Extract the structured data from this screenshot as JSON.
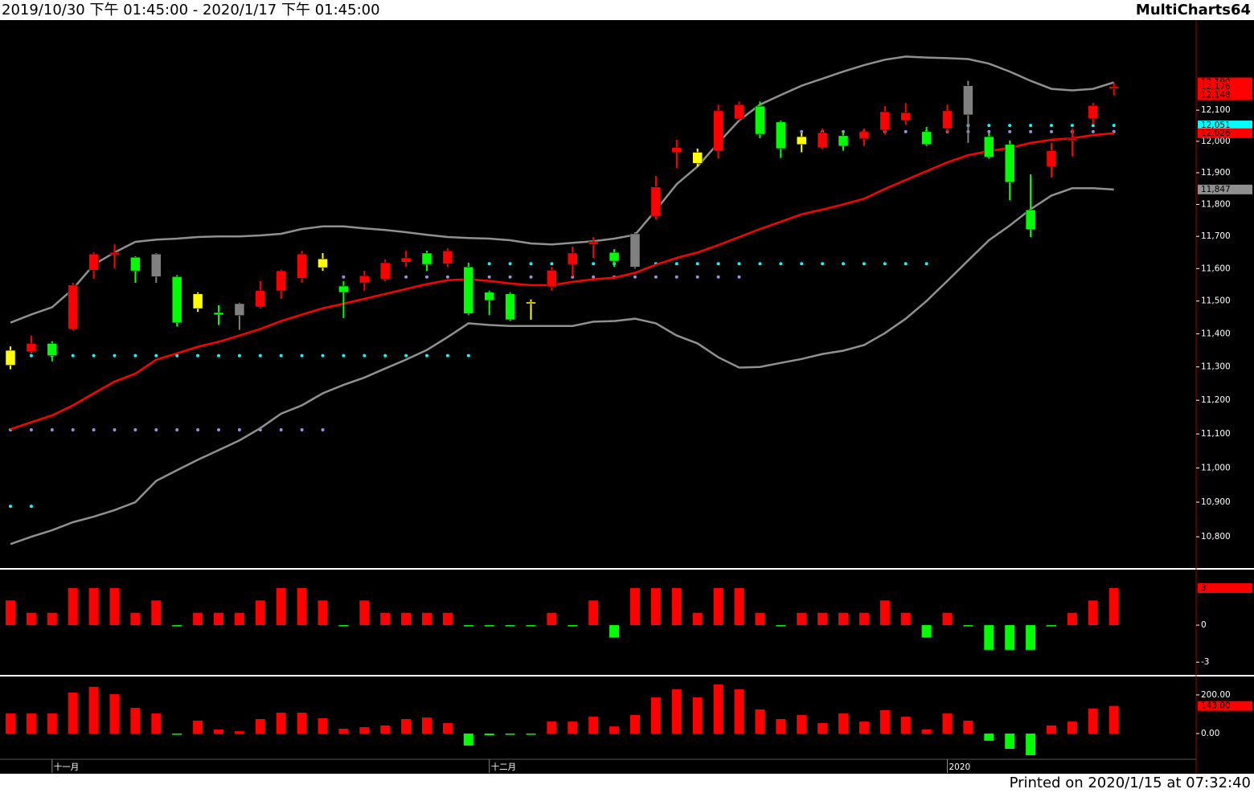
{
  "header": {
    "range": "2019/10/30 下午 01:45:00 - 2020/1/17 下午 01:45:00",
    "app": "MultiCharts64"
  },
  "footer": "Printed on 2020/1/15 at 07:32:40",
  "chart_data": [
    {
      "type": "candlestick",
      "log_scale": true,
      "categories": [
        null,
        null,
        "十一月",
        null,
        null,
        null,
        null,
        null,
        null,
        null,
        null,
        null,
        null,
        null,
        null,
        null,
        null,
        null,
        null,
        null,
        null,
        null,
        null,
        "十二月",
        null,
        null,
        null,
        null,
        null,
        null,
        null,
        null,
        null,
        null,
        null,
        null,
        null,
        null,
        null,
        null,
        null,
        null,
        null,
        null,
        null,
        "2020",
        null,
        null,
        null,
        null,
        null,
        null,
        null,
        null
      ],
      "open": [
        11305,
        11346,
        11371,
        11415,
        11595,
        11643,
        11635,
        11575,
        11575,
        11477,
        11465,
        11456,
        11482,
        11532,
        11570,
        11603,
        11546,
        11556,
        11568,
        11620,
        11648,
        11615,
        11605,
        11527,
        11522,
        11492,
        11544,
        11613,
        11675,
        11650,
        11605,
        11763,
        11965,
        11930,
        11970,
        12072,
        12113,
        12062,
        11990,
        11980,
        12018,
        12008,
        12036,
        12067,
        12031,
        12041,
        12085,
        12015,
        11990,
        11783,
        11920,
        12003,
        12074,
        12170
      ],
      "high": [
        11362,
        11395,
        11378,
        11556,
        11650,
        11675,
        11638,
        11648,
        11580,
        11527,
        11487,
        11495,
        11561,
        11597,
        11655,
        11648,
        11561,
        11593,
        11628,
        11655,
        11655,
        11663,
        11618,
        11532,
        11527,
        11505,
        11605,
        11668,
        11698,
        11660,
        11713,
        11890,
        12005,
        11977,
        12118,
        12128,
        12128,
        12067,
        12026,
        12041,
        12031,
        12041,
        12113,
        12123,
        12046,
        12118,
        12195,
        12028,
        12003,
        11895,
        11995,
        12041,
        12123,
        12190
      ],
      "low": [
        11293,
        11341,
        11317,
        11410,
        11568,
        11600,
        11556,
        11556,
        11422,
        11467,
        11427,
        11412,
        11477,
        11507,
        11556,
        11593,
        11448,
        11532,
        11561,
        11605,
        11593,
        11605,
        11457,
        11457,
        11439,
        11443,
        11532,
        11575,
        11633,
        11605,
        11600,
        11752,
        11915,
        11920,
        11945,
        12067,
        12010,
        11947,
        11965,
        11975,
        11970,
        11985,
        12023,
        12054,
        11985,
        12028,
        11995,
        11945,
        11813,
        11698,
        11885,
        11952,
        12054,
        12148
      ],
      "close": [
        11350,
        11371,
        11334,
        11549,
        11645,
        11650,
        11593,
        11645,
        11434,
        11522,
        11458,
        11492,
        11532,
        11593,
        11645,
        11630,
        11527,
        11578,
        11618,
        11633,
        11613,
        11655,
        11462,
        11502,
        11443,
        11497,
        11595,
        11648,
        11683,
        11623,
        11708,
        11855,
        11980,
        11965,
        12098,
        12118,
        12023,
        11977,
        12015,
        12028,
        11985,
        12031,
        12095,
        12092,
        11990,
        12098,
        12179,
        11950,
        11870,
        11721,
        11970,
        12010,
        12115,
        12176
      ],
      "colors": [
        "#ffff00",
        "#ff0000",
        "#00ff00",
        "#ff0000",
        "#ff0000",
        "#ff0000",
        "#00ff00",
        "#808080",
        "#00ff00",
        "#ffff00",
        "#00ff00",
        "#808080",
        "#ff0000",
        "#ff0000",
        "#ff0000",
        "#ffff00",
        "#00ff00",
        "#ff0000",
        "#ff0000",
        "#ff0000",
        "#00ff00",
        "#ff0000",
        "#00ff00",
        "#00ff00",
        "#00ff00",
        "#ffff00",
        "#ff0000",
        "#ff0000",
        "#ff0000",
        "#00ff00",
        "#808080",
        "#ff0000",
        "#ff0000",
        "#ffff00",
        "#ff0000",
        "#ff0000",
        "#00ff00",
        "#00ff00",
        "#ffff00",
        "#ff0000",
        "#00ff00",
        "#ff0000",
        "#ff0000",
        "#ff0000",
        "#00ff00",
        "#ff0000",
        "#808080",
        "#00ff00",
        "#00ff00",
        "#00ff00",
        "#ff0000",
        "#ff0000",
        "#ff0000",
        "#ff0000"
      ],
      "lines": [
        {
          "color": "#909090",
          "values": [
            11434,
            11459,
            11481,
            11537,
            11612,
            11650,
            11683,
            11690,
            11693,
            11698,
            11700,
            11700,
            11703,
            11708,
            11723,
            11731,
            11731,
            11725,
            11720,
            11713,
            11705,
            11698,
            11695,
            11693,
            11688,
            11678,
            11675,
            11680,
            11685,
            11693,
            11705,
            11782,
            11864,
            11920,
            11995,
            12067,
            12118,
            12149,
            12179,
            12202,
            12225,
            12246,
            12264,
            12274,
            12271,
            12269,
            12266,
            12251,
            12225,
            12195,
            12169,
            12164,
            12169,
            12190
          ]
        },
        {
          "color": "#ff0000",
          "values": [
            11114,
            11135,
            11155,
            11185,
            11221,
            11256,
            11280,
            11322,
            11341,
            11361,
            11376,
            11395,
            11415,
            11439,
            11459,
            11478,
            11492,
            11507,
            11522,
            11537,
            11552,
            11564,
            11567,
            11562,
            11554,
            11549,
            11549,
            11559,
            11567,
            11572,
            11587,
            11612,
            11633,
            11650,
            11673,
            11698,
            11723,
            11746,
            11769,
            11784,
            11800,
            11818,
            11849,
            11877,
            11905,
            11933,
            11956,
            11969,
            11979,
            11995,
            12005,
            12010,
            12020,
            12026
          ]
        },
        {
          "color": "#909090",
          "values": [
            10779,
            10800,
            10819,
            10842,
            10858,
            10877,
            10900,
            10962,
            10993,
            11024,
            11052,
            11081,
            11117,
            11160,
            11185,
            11221,
            11246,
            11268,
            11295,
            11322,
            11351,
            11390,
            11432,
            11427,
            11424,
            11424,
            11424,
            11424,
            11437,
            11439,
            11446,
            11432,
            11395,
            11371,
            11329,
            11298,
            11300,
            11312,
            11324,
            11339,
            11349,
            11366,
            11402,
            11446,
            11500,
            11562,
            11625,
            11688,
            11734,
            11785,
            11828,
            11851,
            11851,
            11847
          ]
        }
      ],
      "levels": [
        {
          "value": 11334,
          "from": 0,
          "to": 22,
          "color": "#00ffff"
        },
        {
          "value": 11112,
          "from": 0,
          "to": 15,
          "color": "#9a90d8"
        },
        {
          "value": 10888,
          "from": 0,
          "to": 1,
          "color": "#00ffff"
        },
        {
          "value": 11615,
          "from": 23,
          "to": 44,
          "color": "#00ffff"
        },
        {
          "value": 11574,
          "from": 16,
          "to": 35,
          "color": "#9a90d8"
        },
        {
          "value": 12031,
          "from": 37,
          "to": 53,
          "color": "#9a90d8"
        },
        {
          "value": 12051,
          "from": 45,
          "to": 53,
          "color": "#00ffff"
        }
      ],
      "ylim": [
        10715,
        12394
      ],
      "yticks": [
        {
          "value": 10800,
          "label": "10,800"
        },
        {
          "value": 10900,
          "label": "10,900"
        },
        {
          "value": 11000,
          "label": "11,000"
        },
        {
          "value": 11100,
          "label": "11,100"
        },
        {
          "value": 11200,
          "label": "11,200"
        },
        {
          "value": 11300,
          "label": "11,300"
        },
        {
          "value": 11400,
          "label": "11,400"
        },
        {
          "value": 11500,
          "label": "11,500"
        },
        {
          "value": 11600,
          "label": "11,600"
        },
        {
          "value": 11700,
          "label": "11,700"
        },
        {
          "value": 11800,
          "label": "11,800"
        },
        {
          "value": 11900,
          "label": "11,900"
        },
        {
          "value": 12000,
          "label": "12,000"
        },
        {
          "value": 12100,
          "label": "12,100"
        }
      ],
      "markers": [
        {
          "value": 12190,
          "label": "12,190",
          "color": "#ff0000"
        },
        {
          "value": 12176,
          "label": "12,176",
          "color": "#ff0000"
        },
        {
          "value": 12148,
          "label": "12,148",
          "color": "#ff0000"
        },
        {
          "value": 12051,
          "label": "12,051",
          "color": "#00ffff"
        },
        {
          "value": 12026,
          "label": "12,026",
          "color": "#ff0000"
        },
        {
          "value": 11847,
          "label": "11,847",
          "color": "#909090"
        }
      ]
    },
    {
      "type": "bar",
      "color": "#ff0000",
      "negative_color": "#00ff00",
      "values": [
        2,
        1,
        1,
        3,
        3,
        3,
        1,
        2,
        0,
        1,
        1,
        1,
        2,
        3,
        3,
        2,
        0,
        2,
        1,
        1,
        1,
        1,
        0,
        0,
        0,
        0,
        1,
        0,
        2,
        -1,
        3,
        3,
        3,
        1,
        3,
        3,
        1,
        0,
        1,
        1,
        1,
        1,
        2,
        1,
        -1,
        1,
        0,
        -2,
        -2,
        -2,
        0,
        1,
        2,
        3
      ],
      "ylim": [
        -3.9,
        4.3
      ],
      "yticks": [
        -3,
        0
      ],
      "markers": [
        {
          "value": 3,
          "color": "#ff0000"
        }
      ]
    },
    {
      "type": "bar",
      "color": "#ff0000",
      "negative_color": "#00ff00",
      "values": [
        104,
        104,
        104,
        212,
        242,
        204,
        133,
        104,
        0,
        67,
        21,
        12,
        75,
        108,
        108,
        79,
        25,
        33,
        42,
        75,
        83,
        54,
        -62,
        -8,
        0,
        -4,
        62,
        62,
        87,
        37,
        96,
        187,
        229,
        187,
        254,
        229,
        125,
        75,
        96,
        54,
        104,
        62,
        121,
        87,
        21,
        104,
        67,
        -37,
        -79,
        -112,
        42,
        62,
        129,
        143
      ],
      "ylim": [
        -133,
        283
      ],
      "yticks": [
        {
          "value": 0,
          "label": "0.00"
        },
        {
          "value": 200,
          "label": "200.00"
        }
      ],
      "markers": [
        {
          "value": 143,
          "label": "143.00",
          "color": "#ff0000"
        }
      ]
    }
  ]
}
